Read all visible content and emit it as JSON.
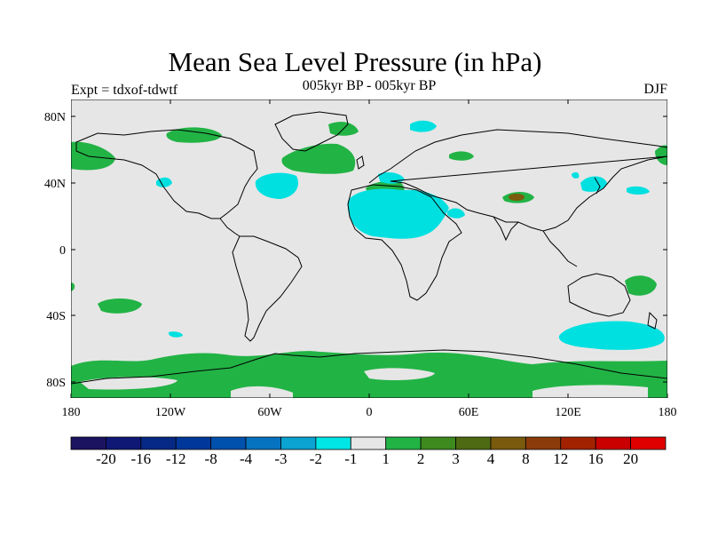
{
  "title": "Mean Sea Level Pressure (in hPa)",
  "subtitle": "005kyr BP - 005kyr BP",
  "experiment": "Expt = tdxof-tdwtf",
  "season": "DJF",
  "lat_ticks": [
    "80N",
    "40N",
    "0",
    "40S",
    "80S"
  ],
  "lon_ticks": [
    "180",
    "120W",
    "60W",
    "0",
    "60E",
    "120E",
    "180"
  ],
  "colorbar": {
    "labels": [
      "-20",
      "-16",
      "-12",
      "-8",
      "-4",
      "-3",
      "-2",
      "-1",
      "1",
      "2",
      "3",
      "4",
      "8",
      "12",
      "16",
      "20"
    ],
    "colors": [
      "#1c1360",
      "#0f1875",
      "#062985",
      "#00389a",
      "#0050ad",
      "#0673c1",
      "#0aa3d2",
      "#00e5e5",
      "#e6e6e6",
      "#22b345",
      "#3e8a1f",
      "#4e6a12",
      "#7a5a0d",
      "#8b3b09",
      "#a22200",
      "#c80000",
      "#e00000"
    ]
  },
  "colors": {
    "ocean_land_neutral": "#e6e6e6",
    "positive_anomaly": "#22b345",
    "negative_anomaly": "#00e0e0",
    "strong_positive": "#7a5a0d"
  }
}
